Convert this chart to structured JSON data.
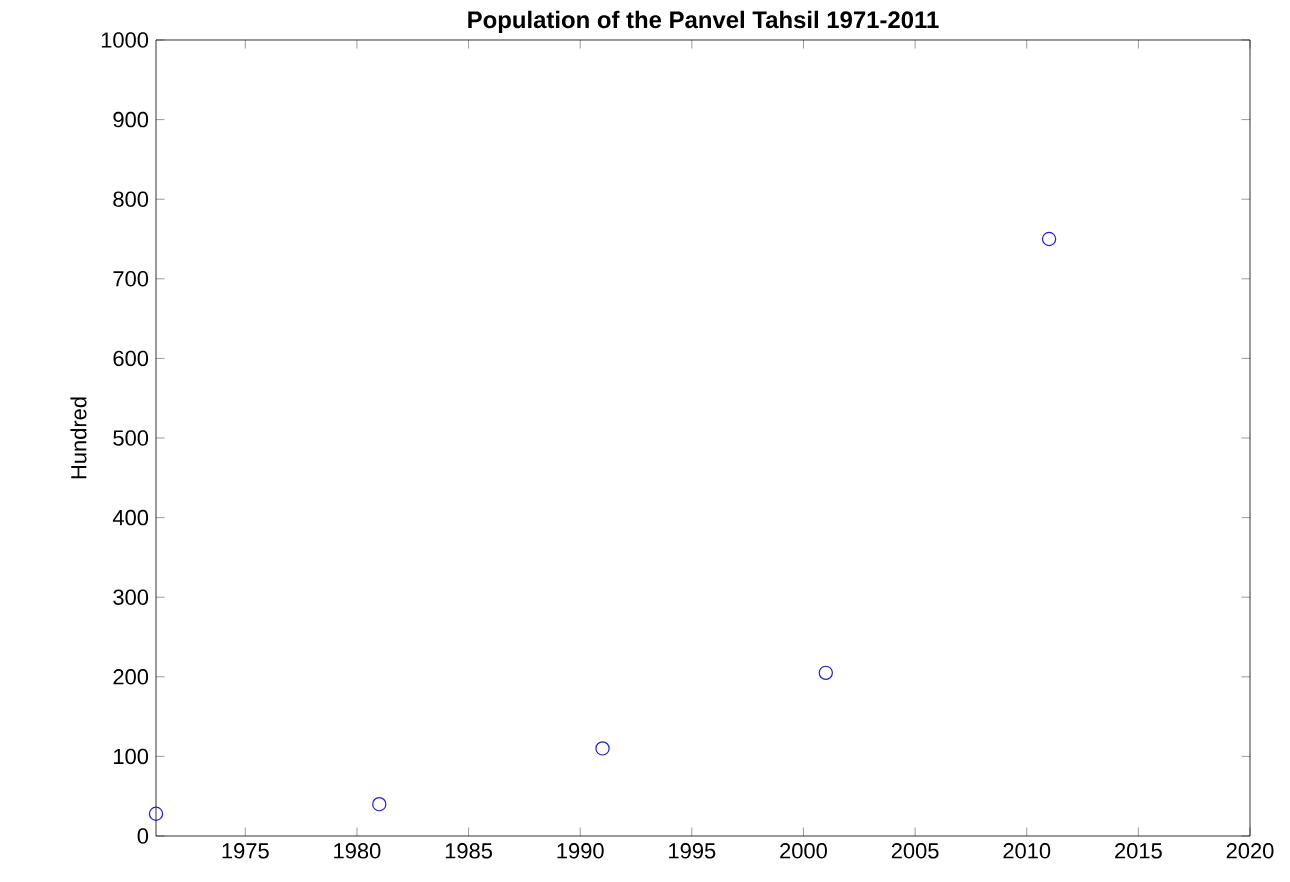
{
  "chart_data": {
    "type": "scatter",
    "title": "Population of the Panvel Tahsil 1971-2011",
    "ylabel": "Hundred",
    "x": [
      1971,
      1981,
      1991,
      2001,
      2011
    ],
    "values": [
      28,
      40,
      110,
      205,
      750
    ],
    "color": "#1f1fd6",
    "marker": "circle",
    "xlim": [
      1971,
      2020
    ],
    "xticks": [
      1975,
      1980,
      1985,
      1990,
      1995,
      2000,
      2005,
      2010,
      2015,
      2020
    ],
    "ylim": [
      0,
      1000
    ],
    "yticks": [
      0,
      100,
      200,
      300,
      400,
      500,
      600,
      700,
      800,
      900,
      1000
    ],
    "grid": false
  }
}
